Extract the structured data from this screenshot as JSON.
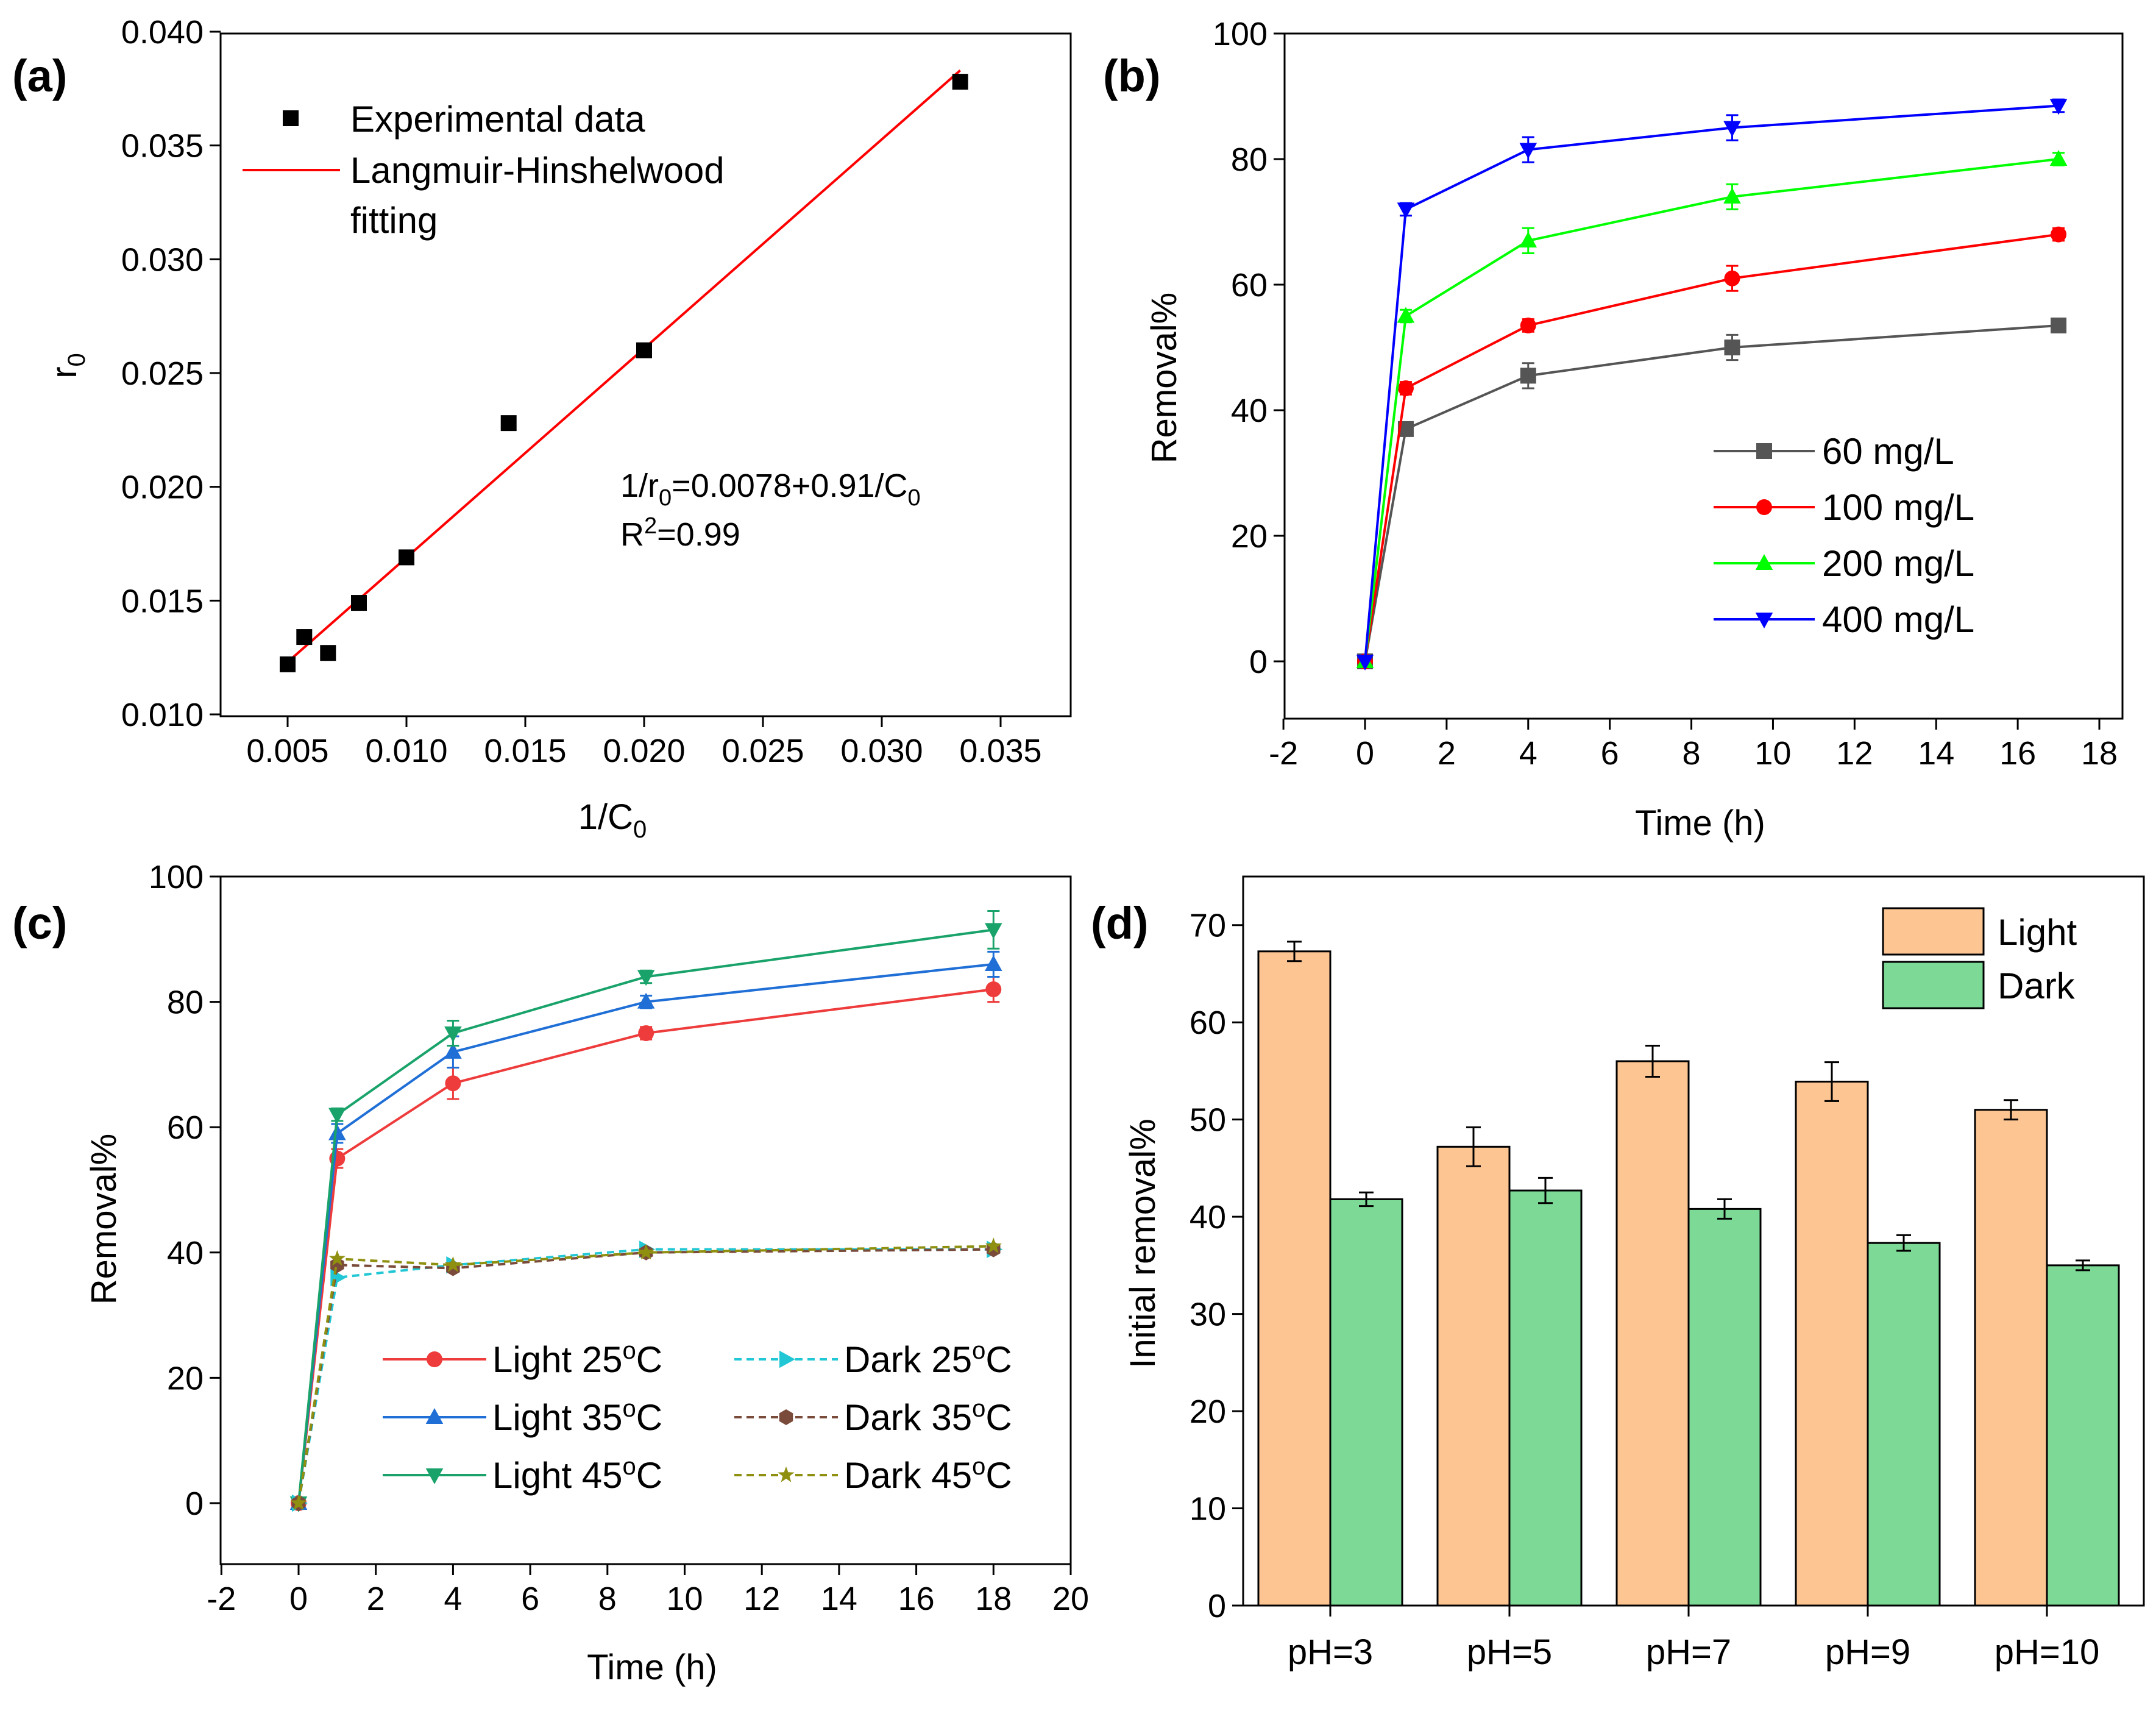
{
  "chart_data": [
    {
      "panel": "(a)",
      "type": "scatter",
      "xlabel": "1/C",
      "xlabel_sub": "0",
      "ylabel": "r",
      "ylabel_sub": "0",
      "xlim": [
        0.0024,
        0.0375
      ],
      "ylim": [
        0.01,
        0.04
      ],
      "xticks": [
        "0.005",
        "0.010",
        "0.015",
        "0.020",
        "0.025",
        "0.030",
        "0.035"
      ],
      "yticks": [
        "0.010",
        "0.015",
        "0.020",
        "0.025",
        "0.030",
        "0.035",
        "0.040"
      ],
      "legend": [
        "Experimental data",
        "Langmuir-Hinshelwood",
        "fitting"
      ],
      "points": {
        "x": [
          0.005,
          0.0057,
          0.0067,
          0.008,
          0.01,
          0.0143,
          0.02,
          0.0333
        ],
        "y": [
          0.0122,
          0.0134,
          0.0127,
          0.0149,
          0.0169,
          0.0228,
          0.026,
          0.0378
        ]
      },
      "fit": {
        "x": [
          0.005,
          0.0333
        ],
        "y": [
          0.0123,
          0.0383
        ]
      },
      "annotation": {
        "eq_pre": "1/r",
        "eq_sub1": "0",
        "eq_mid": "=0.0078+0.91/C",
        "eq_sub2": "0",
        "r_pre": "R",
        "r_sup": "2",
        "r_post": "=0.99"
      }
    },
    {
      "panel": "(b)",
      "type": "line",
      "xlabel": "Time (h)",
      "ylabel": "Removal%",
      "xlim": [
        -3,
        18.5
      ],
      "ylim": [
        -10,
        100
      ],
      "xticks": [
        "-2",
        "0",
        "2",
        "4",
        "6",
        "8",
        "10",
        "12",
        "14",
        "16",
        "18"
      ],
      "yticks": [
        "0",
        "20",
        "40",
        "60",
        "80",
        "100"
      ],
      "x": [
        0,
        1,
        4,
        9,
        17
      ],
      "series": [
        {
          "name": "60 mg/L",
          "color": "#555555",
          "marker": "square",
          "values": [
            0,
            37,
            45.5,
            50,
            53.5
          ],
          "err": [
            0.5,
            1,
            2,
            2,
            1
          ]
        },
        {
          "name": "100 mg/L",
          "color": "#ff0000",
          "marker": "circle",
          "values": [
            0,
            43.5,
            53.5,
            61,
            68
          ],
          "err": [
            0.5,
            1,
            1,
            2,
            1
          ]
        },
        {
          "name": "200 mg/L",
          "color": "#00ff00",
          "marker": "triangle-up",
          "values": [
            0,
            55,
            67,
            74,
            80
          ],
          "err": [
            0.5,
            1,
            2,
            2,
            1
          ]
        },
        {
          "name": "400 mg/L",
          "color": "#0000ff",
          "marker": "triangle-down",
          "values": [
            0,
            72,
            81.5,
            85,
            88.5
          ],
          "err": [
            0.5,
            1,
            2,
            2,
            1
          ]
        }
      ]
    },
    {
      "panel": "(c)",
      "type": "line",
      "xlabel": "Time (h)",
      "ylabel": "Removal%",
      "xlim": [
        -3,
        20
      ],
      "ylim": [
        -10,
        100
      ],
      "xticks": [
        "-2",
        "0",
        "2",
        "4",
        "6",
        "8",
        "10",
        "12",
        "14",
        "16",
        "18",
        "20"
      ],
      "yticks": [
        "0",
        "20",
        "40",
        "60",
        "80",
        "100"
      ],
      "x": [
        0,
        1,
        4,
        9,
        18
      ],
      "series": [
        {
          "name": "Light 25",
          "color": "#ee3b3b",
          "marker": "circle",
          "dash": false,
          "values": [
            0,
            55,
            67,
            75,
            82
          ],
          "err": [
            0.5,
            1.5,
            2.5,
            1,
            2
          ]
        },
        {
          "name": "Light 35",
          "color": "#1f6fd6",
          "marker": "triangle-up",
          "dash": false,
          "values": [
            0,
            59,
            72,
            80,
            86
          ],
          "err": [
            0.5,
            1.5,
            2.5,
            1,
            2
          ]
        },
        {
          "name": "Light 45",
          "color": "#19a36a",
          "marker": "triangle-down",
          "dash": false,
          "values": [
            0,
            62,
            75,
            84,
            91.5
          ],
          "err": [
            0.5,
            1,
            2,
            1,
            3
          ]
        },
        {
          "name": "Dark 25",
          "color": "#21c7d4",
          "marker": "triangle-right",
          "dash": true,
          "values": [
            0,
            36,
            38,
            40.5,
            40.5
          ],
          "err": [
            0,
            0,
            0,
            0,
            0
          ]
        },
        {
          "name": "Dark 35",
          "color": "#7a4a3a",
          "marker": "hexagon",
          "dash": true,
          "values": [
            0,
            38,
            37.5,
            40,
            40.5
          ],
          "err": [
            0,
            0,
            0,
            0,
            0
          ]
        },
        {
          "name": "Dark 45",
          "color": "#8f8f10",
          "marker": "star",
          "dash": true,
          "values": [
            0,
            39,
            38,
            40,
            41
          ],
          "err": [
            0,
            0,
            0,
            0,
            0
          ]
        }
      ],
      "degree_suffix": "C",
      "degree_sup": "o"
    },
    {
      "panel": "(d)",
      "type": "bar",
      "ylabel": "Initial removal%",
      "ylim": [
        0,
        75
      ],
      "yticks": [
        "0",
        "10",
        "20",
        "30",
        "40",
        "50",
        "60",
        "70"
      ],
      "categories": [
        "pH=3",
        "pH=5",
        "pH=7",
        "pH=9",
        "pH=10"
      ],
      "series": [
        {
          "name": "Light",
          "color": "#fcc592",
          "values": [
            67.3,
            47.2,
            56,
            53.9,
            51
          ],
          "err": [
            1,
            2,
            1.6,
            2,
            1
          ]
        },
        {
          "name": "Dark",
          "color": "#7dd996",
          "values": [
            41.8,
            42.7,
            40.8,
            37.3,
            35
          ],
          "err": [
            0.7,
            1.3,
            1,
            0.8,
            0.5
          ]
        }
      ]
    }
  ]
}
